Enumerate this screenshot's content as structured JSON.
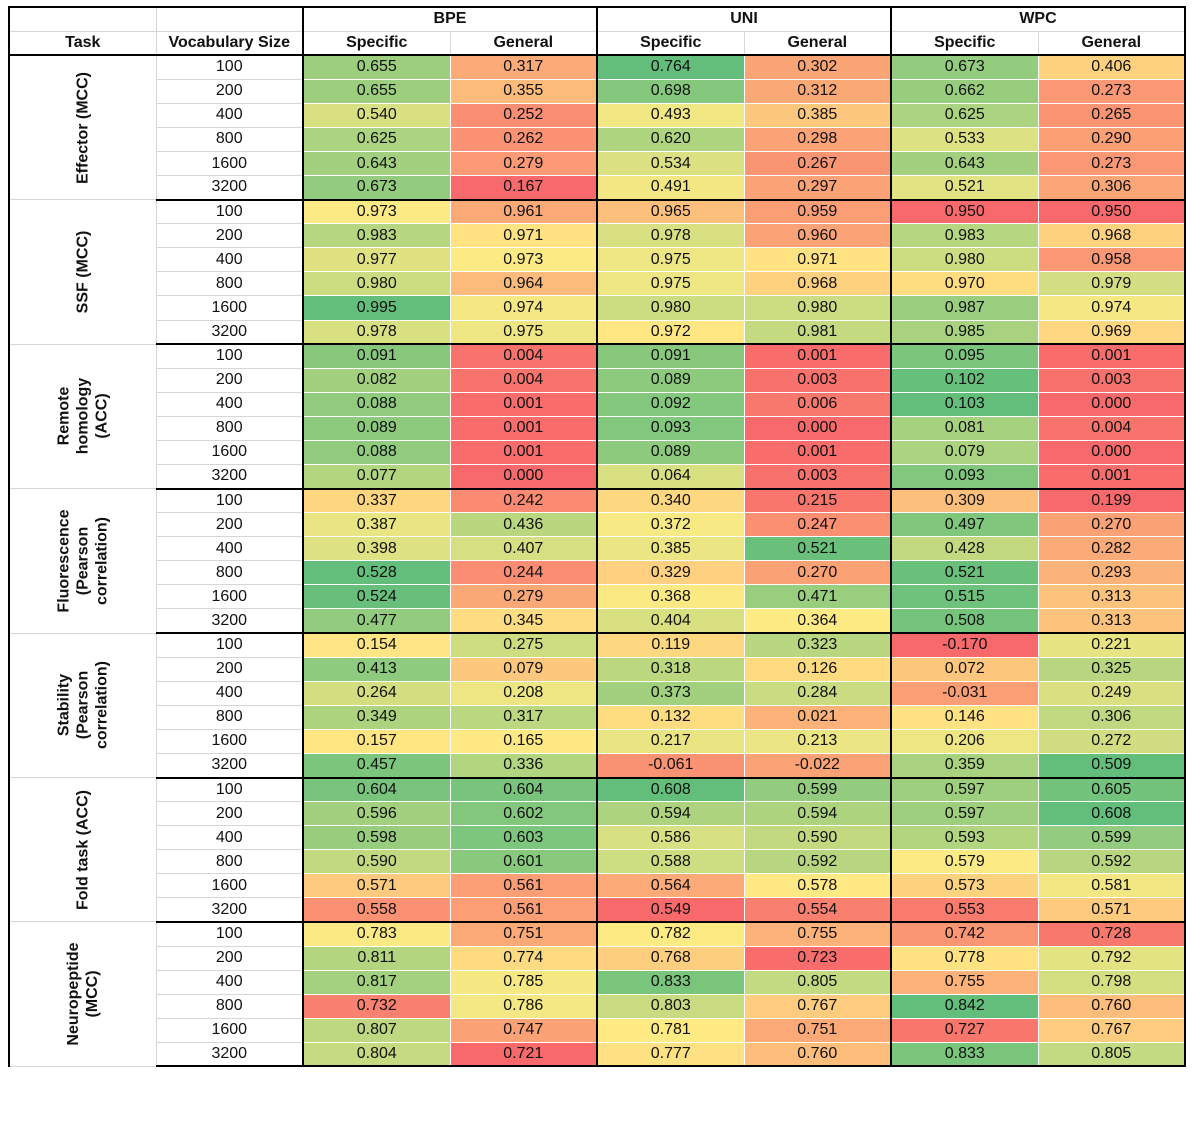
{
  "header": {
    "task": "Task",
    "vocab": "Vocabulary Size",
    "methods": [
      "BPE",
      "UNI",
      "WPC"
    ],
    "sub": [
      "Specific",
      "General"
    ]
  },
  "colors": {
    "red": "#f8696b",
    "yellow": "#ffeb84",
    "green": "#63be7b"
  },
  "groups": [
    {
      "task": "Effector (MCC)",
      "rows": [
        {
          "size": "100",
          "v": [
            "0.655",
            "0.317",
            "0.764",
            "0.302",
            "0.673",
            "0.406"
          ]
        },
        {
          "size": "200",
          "v": [
            "0.655",
            "0.355",
            "0.698",
            "0.312",
            "0.662",
            "0.273"
          ]
        },
        {
          "size": "400",
          "v": [
            "0.540",
            "0.252",
            "0.493",
            "0.385",
            "0.625",
            "0.265"
          ]
        },
        {
          "size": "800",
          "v": [
            "0.625",
            "0.262",
            "0.620",
            "0.298",
            "0.533",
            "0.290"
          ]
        },
        {
          "size": "1600",
          "v": [
            "0.643",
            "0.279",
            "0.534",
            "0.267",
            "0.643",
            "0.273"
          ]
        },
        {
          "size": "3200",
          "v": [
            "0.673",
            "0.167",
            "0.491",
            "0.297",
            "0.521",
            "0.306"
          ]
        }
      ]
    },
    {
      "task": "SSF (MCC)",
      "rows": [
        {
          "size": "100",
          "v": [
            "0.973",
            "0.961",
            "0.965",
            "0.959",
            "0.950",
            "0.950"
          ]
        },
        {
          "size": "200",
          "v": [
            "0.983",
            "0.971",
            "0.978",
            "0.960",
            "0.983",
            "0.968"
          ]
        },
        {
          "size": "400",
          "v": [
            "0.977",
            "0.973",
            "0.975",
            "0.971",
            "0.980",
            "0.958"
          ]
        },
        {
          "size": "800",
          "v": [
            "0.980",
            "0.964",
            "0.975",
            "0.968",
            "0.970",
            "0.979"
          ]
        },
        {
          "size": "1600",
          "v": [
            "0.995",
            "0.974",
            "0.980",
            "0.980",
            "0.987",
            "0.974"
          ]
        },
        {
          "size": "3200",
          "v": [
            "0.978",
            "0.975",
            "0.972",
            "0.981",
            "0.985",
            "0.969"
          ]
        }
      ]
    },
    {
      "task": "Remote\nhomology\n(ACC)",
      "rows": [
        {
          "size": "100",
          "v": [
            "0.091",
            "0.004",
            "0.091",
            "0.001",
            "0.095",
            "0.001"
          ]
        },
        {
          "size": "200",
          "v": [
            "0.082",
            "0.004",
            "0.089",
            "0.003",
            "0.102",
            "0.003"
          ]
        },
        {
          "size": "400",
          "v": [
            "0.088",
            "0.001",
            "0.092",
            "0.006",
            "0.103",
            "0.000"
          ]
        },
        {
          "size": "800",
          "v": [
            "0.089",
            "0.001",
            "0.093",
            "0.000",
            "0.081",
            "0.004"
          ]
        },
        {
          "size": "1600",
          "v": [
            "0.088",
            "0.001",
            "0.089",
            "0.001",
            "0.079",
            "0.000"
          ]
        },
        {
          "size": "3200",
          "v": [
            "0.077",
            "0.000",
            "0.064",
            "0.003",
            "0.093",
            "0.001"
          ]
        }
      ]
    },
    {
      "task": "Fluorescence\n(Pearson\ncorrelation)",
      "rows": [
        {
          "size": "100",
          "v": [
            "0.337",
            "0.242",
            "0.340",
            "0.215",
            "0.309",
            "0.199"
          ]
        },
        {
          "size": "200",
          "v": [
            "0.387",
            "0.436",
            "0.372",
            "0.247",
            "0.497",
            "0.270"
          ]
        },
        {
          "size": "400",
          "v": [
            "0.398",
            "0.407",
            "0.385",
            "0.521",
            "0.428",
            "0.282"
          ]
        },
        {
          "size": "800",
          "v": [
            "0.528",
            "0.244",
            "0.329",
            "0.270",
            "0.521",
            "0.293"
          ]
        },
        {
          "size": "1600",
          "v": [
            "0.524",
            "0.279",
            "0.368",
            "0.471",
            "0.515",
            "0.313"
          ]
        },
        {
          "size": "3200",
          "v": [
            "0.477",
            "0.345",
            "0.404",
            "0.364",
            "0.508",
            "0.313"
          ]
        }
      ]
    },
    {
      "task": "Stability\n(Pearson\ncorrelation)",
      "rows": [
        {
          "size": "100",
          "v": [
            "0.154",
            "0.275",
            "0.119",
            "0.323",
            "-0.170",
            "0.221"
          ]
        },
        {
          "size": "200",
          "v": [
            "0.413",
            "0.079",
            "0.318",
            "0.126",
            "0.072",
            "0.325"
          ]
        },
        {
          "size": "400",
          "v": [
            "0.264",
            "0.208",
            "0.373",
            "0.284",
            "-0.031",
            "0.249"
          ]
        },
        {
          "size": "800",
          "v": [
            "0.349",
            "0.317",
            "0.132",
            "0.021",
            "0.146",
            "0.306"
          ]
        },
        {
          "size": "1600",
          "v": [
            "0.157",
            "0.165",
            "0.217",
            "0.213",
            "0.206",
            "0.272"
          ]
        },
        {
          "size": "3200",
          "v": [
            "0.457",
            "0.336",
            "-0.061",
            "-0.022",
            "0.359",
            "0.509"
          ]
        }
      ]
    },
    {
      "task": "Fold task (ACC)",
      "rows": [
        {
          "size": "100",
          "v": [
            "0.604",
            "0.604",
            "0.608",
            "0.599",
            "0.597",
            "0.605"
          ]
        },
        {
          "size": "200",
          "v": [
            "0.596",
            "0.602",
            "0.594",
            "0.594",
            "0.597",
            "0.608"
          ]
        },
        {
          "size": "400",
          "v": [
            "0.598",
            "0.603",
            "0.586",
            "0.590",
            "0.593",
            "0.599"
          ]
        },
        {
          "size": "800",
          "v": [
            "0.590",
            "0.601",
            "0.588",
            "0.592",
            "0.579",
            "0.592"
          ]
        },
        {
          "size": "1600",
          "v": [
            "0.571",
            "0.561",
            "0.564",
            "0.578",
            "0.573",
            "0.581"
          ]
        },
        {
          "size": "3200",
          "v": [
            "0.558",
            "0.561",
            "0.549",
            "0.554",
            "0.553",
            "0.571"
          ]
        }
      ]
    },
    {
      "task": "Neuropeptide\n(MCC)",
      "rows": [
        {
          "size": "100",
          "v": [
            "0.783",
            "0.751",
            "0.782",
            "0.755",
            "0.742",
            "0.728"
          ]
        },
        {
          "size": "200",
          "v": [
            "0.811",
            "0.774",
            "0.768",
            "0.723",
            "0.778",
            "0.792"
          ]
        },
        {
          "size": "400",
          "v": [
            "0.817",
            "0.785",
            "0.833",
            "0.805",
            "0.755",
            "0.798"
          ]
        },
        {
          "size": "800",
          "v": [
            "0.732",
            "0.786",
            "0.803",
            "0.767",
            "0.842",
            "0.760"
          ]
        },
        {
          "size": "1600",
          "v": [
            "0.807",
            "0.747",
            "0.781",
            "0.751",
            "0.727",
            "0.767"
          ]
        },
        {
          "size": "3200",
          "v": [
            "0.804",
            "0.721",
            "0.777",
            "0.760",
            "0.833",
            "0.805"
          ]
        }
      ]
    }
  ]
}
